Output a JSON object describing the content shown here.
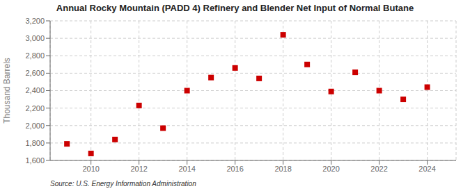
{
  "chart_data": {
    "type": "scatter",
    "title": "Annual Rocky Mountain (PADD 4) Refinery and Blender Net Input of Normal Butane",
    "ylabel": "Thousand Barrels",
    "annotations": [
      "Source: U.S. Energy Information Administration"
    ],
    "x": [
      2009,
      2010,
      2011,
      2012,
      2013,
      2014,
      2015,
      2016,
      2017,
      2018,
      2019,
      2020,
      2021,
      2022,
      2023,
      2024
    ],
    "values": [
      1790,
      1680,
      1840,
      2230,
      1970,
      2400,
      2550,
      2660,
      2540,
      3040,
      2700,
      2390,
      2610,
      2400,
      2300,
      2440
    ],
    "color": "#CC0000",
    "marker": "square",
    "xlim": [
      2008.3,
      2025.2
    ],
    "xticks": [
      2010,
      2012,
      2014,
      2016,
      2018,
      2020,
      2022,
      2024
    ],
    "ylim": [
      1600,
      3200
    ],
    "yticks": [
      {
        "value": 1600,
        "label": "1,600"
      },
      {
        "value": 1800,
        "label": "1,800"
      },
      {
        "value": 2000,
        "label": "2,000"
      },
      {
        "value": 2200,
        "label": "2,200"
      },
      {
        "value": 2400,
        "label": "2,400"
      },
      {
        "value": 2600,
        "label": "2,600"
      },
      {
        "value": 2800,
        "label": "2,800"
      },
      {
        "value": 3000,
        "label": "3,000"
      },
      {
        "value": 3200,
        "label": "3,200"
      }
    ],
    "grid": true
  }
}
